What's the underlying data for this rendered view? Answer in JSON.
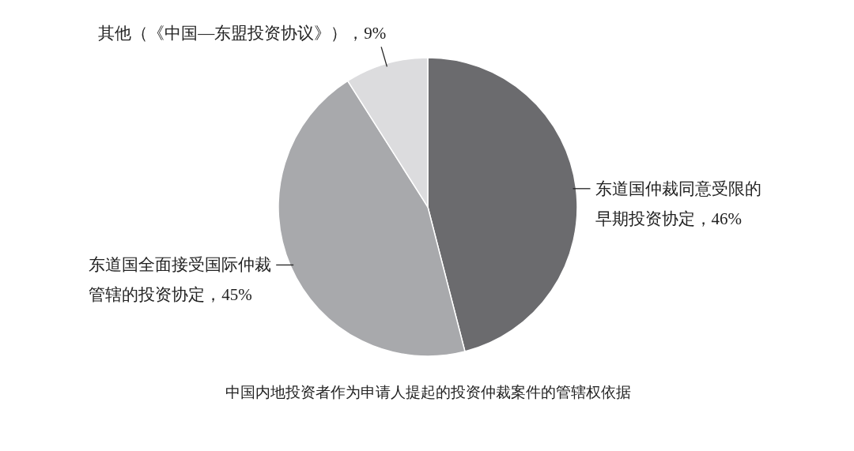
{
  "chart_data": {
    "type": "pie",
    "title": "中国内地投资者作为申请人提起的投资仲裁案件的管辖权依据",
    "categories": [
      "东道国仲裁同意受限的早期投资协定",
      "东道国全面接受国际仲裁管辖的投资协定",
      "其他（《中国—东盟投资协议》）"
    ],
    "values": [
      46,
      45,
      9
    ],
    "colors": [
      "#6b6b6e",
      "#a8a9ac",
      "#dcdcde"
    ],
    "value_labels": [
      "46%",
      "45%",
      "9%"
    ]
  }
}
